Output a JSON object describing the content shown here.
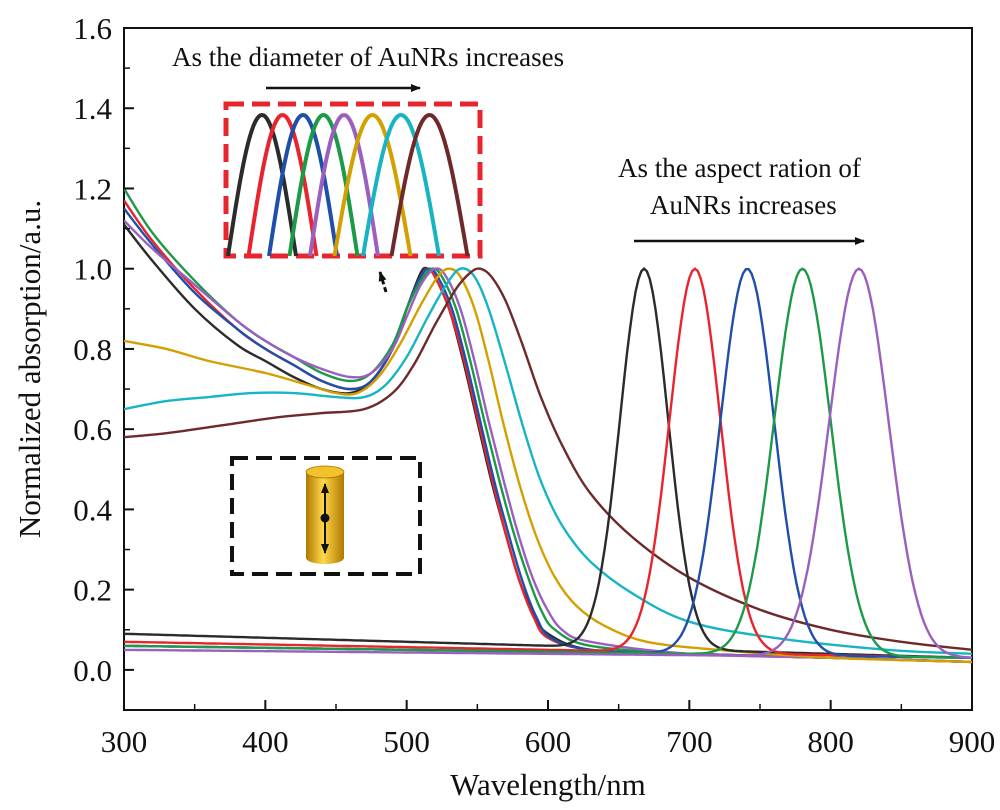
{
  "chart_data": {
    "type": "line",
    "xlabel": "Wavelength/nm",
    "ylabel": "Normalized absorption/a.u.",
    "xlim": [
      300,
      900
    ],
    "ylim": [
      -0.1,
      1.6
    ],
    "x_ticks": [
      "300",
      "400",
      "500",
      "600",
      "700",
      "800",
      "900"
    ],
    "y_ticks": [
      "0.0",
      "0.2",
      "0.4",
      "0.6",
      "0.8",
      "1.0",
      "1.2",
      "1.4",
      "1.6"
    ],
    "grid": false,
    "annotations": {
      "diameter": "As the diameter  of  AuNRs  increases",
      "aspect_line1": "As the aspect  ration of",
      "aspect_line2": "AuNRs  increases"
    },
    "series_colors": [
      "#2b2b2b",
      "#e8242c",
      "#1f4fa8",
      "#1d9a48",
      "#9b5fc0",
      "#d4a000",
      "#17b5c4",
      "#6e2a2a"
    ],
    "series_colors_longitudinal": [
      "#2b2b2b",
      "#e8242c",
      "#1f4fa8",
      "#1d9a48",
      "#9b5fc0"
    ],
    "transverse_series": [
      {
        "color": "#2b2b2b",
        "values": [
          [
            300,
            1.11
          ],
          [
            320,
            1.02
          ],
          [
            350,
            0.9
          ],
          [
            380,
            0.81
          ],
          [
            400,
            0.77
          ],
          [
            420,
            0.73
          ],
          [
            440,
            0.7
          ],
          [
            460,
            0.69
          ],
          [
            475,
            0.72
          ],
          [
            490,
            0.8
          ],
          [
            500,
            0.9
          ],
          [
            510,
            0.99
          ],
          [
            515,
            1.0
          ],
          [
            520,
            0.98
          ],
          [
            530,
            0.9
          ],
          [
            540,
            0.77
          ],
          [
            550,
            0.62
          ],
          [
            560,
            0.47
          ],
          [
            570,
            0.34
          ],
          [
            580,
            0.22
          ],
          [
            590,
            0.14
          ],
          [
            600,
            0.09
          ],
          [
            630,
            0.05
          ],
          [
            700,
            0.04
          ],
          [
            800,
            0.03
          ],
          [
            900,
            0.02
          ]
        ]
      },
      {
        "color": "#e8242c",
        "values": [
          [
            300,
            1.17
          ],
          [
            320,
            1.07
          ],
          [
            350,
            0.95
          ],
          [
            380,
            0.85
          ],
          [
            400,
            0.8
          ],
          [
            420,
            0.76
          ],
          [
            440,
            0.72
          ],
          [
            460,
            0.7
          ],
          [
            475,
            0.72
          ],
          [
            490,
            0.8
          ],
          [
            500,
            0.9
          ],
          [
            510,
            0.98
          ],
          [
            515,
            1.0
          ],
          [
            520,
            0.98
          ],
          [
            530,
            0.9
          ],
          [
            540,
            0.78
          ],
          [
            550,
            0.63
          ],
          [
            560,
            0.48
          ],
          [
            570,
            0.34
          ],
          [
            580,
            0.22
          ],
          [
            590,
            0.13
          ],
          [
            600,
            0.08
          ],
          [
            630,
            0.05
          ],
          [
            700,
            0.04
          ],
          [
            800,
            0.03
          ],
          [
            900,
            0.02
          ]
        ]
      },
      {
        "color": "#1f4fa8",
        "values": [
          [
            300,
            1.15
          ],
          [
            320,
            1.06
          ],
          [
            350,
            0.94
          ],
          [
            380,
            0.85
          ],
          [
            400,
            0.8
          ],
          [
            420,
            0.76
          ],
          [
            440,
            0.72
          ],
          [
            460,
            0.7
          ],
          [
            475,
            0.72
          ],
          [
            490,
            0.8
          ],
          [
            500,
            0.9
          ],
          [
            510,
            0.98
          ],
          [
            516,
            1.0
          ],
          [
            522,
            0.98
          ],
          [
            532,
            0.9
          ],
          [
            542,
            0.77
          ],
          [
            552,
            0.62
          ],
          [
            562,
            0.47
          ],
          [
            572,
            0.34
          ],
          [
            582,
            0.22
          ],
          [
            592,
            0.13
          ],
          [
            602,
            0.08
          ],
          [
            630,
            0.05
          ],
          [
            700,
            0.04
          ],
          [
            800,
            0.03
          ],
          [
            900,
            0.02
          ]
        ]
      },
      {
        "color": "#1d9a48",
        "values": [
          [
            300,
            1.2
          ],
          [
            320,
            1.09
          ],
          [
            350,
            0.97
          ],
          [
            380,
            0.87
          ],
          [
            400,
            0.82
          ],
          [
            420,
            0.78
          ],
          [
            440,
            0.74
          ],
          [
            460,
            0.72
          ],
          [
            475,
            0.74
          ],
          [
            490,
            0.81
          ],
          [
            500,
            0.9
          ],
          [
            510,
            0.97
          ],
          [
            518,
            1.0
          ],
          [
            525,
            0.98
          ],
          [
            535,
            0.9
          ],
          [
            545,
            0.77
          ],
          [
            555,
            0.62
          ],
          [
            565,
            0.48
          ],
          [
            575,
            0.35
          ],
          [
            585,
            0.24
          ],
          [
            595,
            0.15
          ],
          [
            605,
            0.1
          ],
          [
            630,
            0.06
          ],
          [
            700,
            0.04
          ],
          [
            800,
            0.03
          ],
          [
            900,
            0.02
          ]
        ]
      },
      {
        "color": "#9b5fc0",
        "values": [
          [
            300,
            1.12
          ],
          [
            320,
            1.05
          ],
          [
            350,
            0.96
          ],
          [
            380,
            0.87
          ],
          [
            400,
            0.82
          ],
          [
            420,
            0.78
          ],
          [
            440,
            0.75
          ],
          [
            460,
            0.73
          ],
          [
            475,
            0.74
          ],
          [
            490,
            0.8
          ],
          [
            500,
            0.88
          ],
          [
            510,
            0.96
          ],
          [
            520,
            1.0
          ],
          [
            528,
            0.98
          ],
          [
            538,
            0.9
          ],
          [
            548,
            0.77
          ],
          [
            558,
            0.62
          ],
          [
            568,
            0.48
          ],
          [
            578,
            0.35
          ],
          [
            588,
            0.24
          ],
          [
            598,
            0.16
          ],
          [
            610,
            0.1
          ],
          [
            630,
            0.07
          ],
          [
            700,
            0.04
          ],
          [
            800,
            0.03
          ],
          [
            900,
            0.02
          ]
        ]
      },
      {
        "color": "#d4a000",
        "values": [
          [
            300,
            0.82
          ],
          [
            330,
            0.8
          ],
          [
            360,
            0.77
          ],
          [
            400,
            0.74
          ],
          [
            430,
            0.71
          ],
          [
            450,
            0.69
          ],
          [
            465,
            0.69
          ],
          [
            480,
            0.73
          ],
          [
            495,
            0.81
          ],
          [
            510,
            0.91
          ],
          [
            522,
            0.98
          ],
          [
            530,
            1.0
          ],
          [
            538,
            0.98
          ],
          [
            548,
            0.9
          ],
          [
            558,
            0.77
          ],
          [
            568,
            0.62
          ],
          [
            580,
            0.46
          ],
          [
            592,
            0.33
          ],
          [
            605,
            0.23
          ],
          [
            620,
            0.16
          ],
          [
            640,
            0.11
          ],
          [
            670,
            0.07
          ],
          [
            720,
            0.05
          ],
          [
            800,
            0.03
          ],
          [
            900,
            0.02
          ]
        ]
      },
      {
        "color": "#17b5c4",
        "values": [
          [
            300,
            0.65
          ],
          [
            330,
            0.67
          ],
          [
            360,
            0.68
          ],
          [
            390,
            0.69
          ],
          [
            420,
            0.69
          ],
          [
            450,
            0.68
          ],
          [
            470,
            0.68
          ],
          [
            485,
            0.71
          ],
          [
            500,
            0.78
          ],
          [
            515,
            0.88
          ],
          [
            528,
            0.96
          ],
          [
            538,
            1.0
          ],
          [
            548,
            0.98
          ],
          [
            558,
            0.9
          ],
          [
            570,
            0.76
          ],
          [
            582,
            0.61
          ],
          [
            595,
            0.47
          ],
          [
            610,
            0.36
          ],
          [
            630,
            0.27
          ],
          [
            660,
            0.19
          ],
          [
            700,
            0.12
          ],
          [
            760,
            0.08
          ],
          [
            840,
            0.05
          ],
          [
            900,
            0.04
          ]
        ]
      },
      {
        "color": "#6e2a2a",
        "values": [
          [
            300,
            0.58
          ],
          [
            330,
            0.59
          ],
          [
            370,
            0.61
          ],
          [
            410,
            0.63
          ],
          [
            440,
            0.64
          ],
          [
            470,
            0.65
          ],
          [
            490,
            0.69
          ],
          [
            505,
            0.76
          ],
          [
            520,
            0.86
          ],
          [
            535,
            0.95
          ],
          [
            545,
            0.99
          ],
          [
            552,
            1.0
          ],
          [
            560,
            0.98
          ],
          [
            570,
            0.92
          ],
          [
            582,
            0.81
          ],
          [
            595,
            0.68
          ],
          [
            610,
            0.56
          ],
          [
            630,
            0.44
          ],
          [
            660,
            0.33
          ],
          [
            700,
            0.23
          ],
          [
            750,
            0.15
          ],
          [
            800,
            0.1
          ],
          [
            850,
            0.07
          ],
          [
            900,
            0.05
          ]
        ]
      }
    ],
    "longitudinal_series": [
      {
        "color": "#2b2b2b",
        "peak": 668,
        "width": 17,
        "baseline_start": 0.09,
        "baseline_end": 0.03
      },
      {
        "color": "#e8242c",
        "peak": 704,
        "width": 18,
        "baseline_start": 0.07,
        "baseline_end": 0.03
      },
      {
        "color": "#1f4fa8",
        "peak": 741,
        "width": 19,
        "baseline_start": 0.06,
        "baseline_end": 0.03
      },
      {
        "color": "#1d9a48",
        "peak": 780,
        "width": 20,
        "baseline_start": 0.06,
        "baseline_end": 0.03
      },
      {
        "color": "#9b5fc0",
        "peak": 820,
        "width": 21,
        "baseline_start": 0.05,
        "baseline_end": 0.03
      }
    ]
  }
}
